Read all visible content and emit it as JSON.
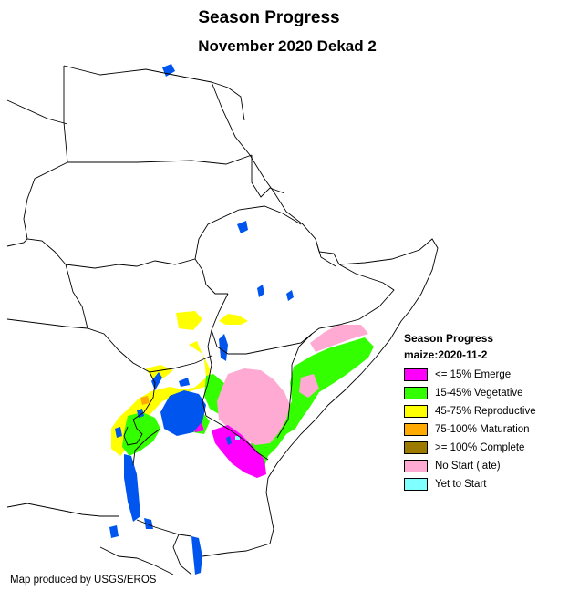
{
  "map": {
    "title": "Season Progress",
    "subtitle": "November 2020 Dekad 2",
    "credit": "Map produced by USGS/EROS"
  },
  "legend": {
    "title_line1": "Season Progress",
    "title_line2": "maize:2020-11-2",
    "items": [
      {
        "label": "<= 15% Emerge",
        "color": "#ff00ff"
      },
      {
        "label": "15-45% Vegetative",
        "color": "#33ff00"
      },
      {
        "label": "45-75% Reproductive",
        "color": "#ffff00"
      },
      {
        "label": "75-100% Maturation",
        "color": "#ffaa00"
      },
      {
        "label": ">= 100% Complete",
        "color": "#9c7a00"
      },
      {
        "label": "No Start (late)",
        "color": "#ffaad2"
      },
      {
        "label": "Yet to Start",
        "color": "#7fffff"
      }
    ]
  },
  "colors": {
    "water": "#0055ee",
    "border": "#000000",
    "land": "#ffffff"
  }
}
